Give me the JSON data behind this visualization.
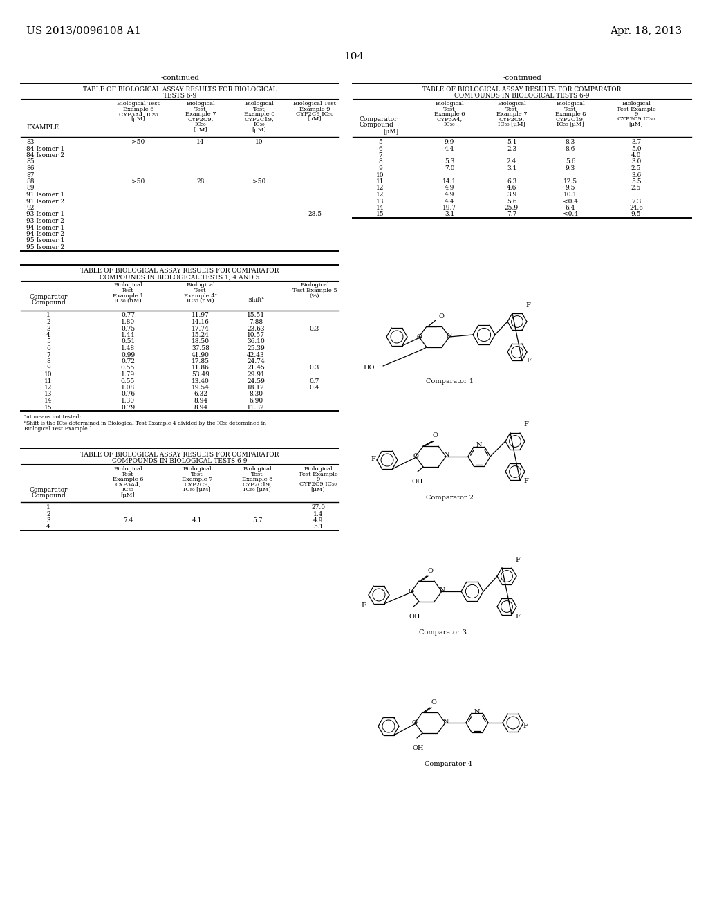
{
  "patent_number": "US 2013/0096108 A1",
  "date": "Apr. 18, 2013",
  "page_number": "104",
  "bg_color": "#ffffff",
  "tl_rows": [
    [
      "83",
      ">50",
      "14",
      "10",
      ""
    ],
    [
      "84 Isomer 1",
      "",
      "",
      "",
      ""
    ],
    [
      "84 Isomer 2",
      "",
      "",
      "",
      ""
    ],
    [
      "85",
      "",
      "",
      "",
      ""
    ],
    [
      "86",
      "",
      "",
      "",
      ""
    ],
    [
      "87",
      "",
      "",
      "",
      ""
    ],
    [
      "88",
      ">50",
      "28",
      ">50",
      ""
    ],
    [
      "89",
      "",
      "",
      "",
      ""
    ],
    [
      "91 Isomer 1",
      "",
      "",
      "",
      ""
    ],
    [
      "91 Isomer 2",
      "",
      "",
      "",
      ""
    ],
    [
      "92",
      "",
      "",
      "",
      ""
    ],
    [
      "93 Isomer 1",
      "",
      "",
      "",
      "28.5"
    ],
    [
      "93 Isomer 2",
      "",
      "",
      "",
      ""
    ],
    [
      "94 Isomer 1",
      "",
      "",
      "",
      ""
    ],
    [
      "94 Isomer 2",
      "",
      "",
      "",
      ""
    ],
    [
      "95 Isomer 1",
      "",
      "",
      "",
      ""
    ],
    [
      "95 Isomer 2",
      "",
      "",
      "",
      ""
    ]
  ],
  "tr_rows": [
    [
      "5",
      "9.9",
      "5.1",
      "8.3",
      "3.7"
    ],
    [
      "6",
      "4.4",
      "2.3",
      "8.6",
      "5.0"
    ],
    [
      "7",
      "",
      "",
      "",
      "4.0"
    ],
    [
      "8",
      "5.3",
      "2.4",
      "5.6",
      "3.0"
    ],
    [
      "9",
      "7.0",
      "3.1",
      "9.3",
      "2.5"
    ],
    [
      "10",
      "",
      "",
      "",
      "3.6"
    ],
    [
      "11",
      "14.1",
      "6.3",
      "12.5",
      "5.5"
    ],
    [
      "12",
      "4.9",
      "4.6",
      "9.5",
      "2.5"
    ],
    [
      "12",
      "4.9",
      "3.9",
      "10.1",
      ""
    ],
    [
      "13",
      "4.4",
      "5.6",
      "<0.4",
      "7.3"
    ],
    [
      "14",
      "19.7",
      "25.9",
      "6.4",
      "24.6"
    ],
    [
      "15",
      "3.1",
      "7.7",
      "<0.4",
      "9.5"
    ]
  ],
  "ml_rows": [
    [
      "1",
      "0.77",
      "11.97",
      "15.51",
      ""
    ],
    [
      "2",
      "1.80",
      "14.16",
      "7.88",
      ""
    ],
    [
      "3",
      "0.75",
      "17.74",
      "23.63",
      "0.3"
    ],
    [
      "4",
      "1.44",
      "15.24",
      "10.57",
      ""
    ],
    [
      "5",
      "0.51",
      "18.50",
      "36.10",
      ""
    ],
    [
      "6",
      "1.48",
      "37.58",
      "25.39",
      ""
    ],
    [
      "7",
      "0.99",
      "41.90",
      "42.43",
      ""
    ],
    [
      "8",
      "0.72",
      "17.85",
      "24.74",
      ""
    ],
    [
      "9",
      "0.55",
      "11.86",
      "21.45",
      "0.3"
    ],
    [
      "10",
      "1.79",
      "53.49",
      "29.91",
      ""
    ],
    [
      "11",
      "0.55",
      "13.40",
      "24.59",
      "0.7"
    ],
    [
      "12",
      "1.08",
      "19.54",
      "18.12",
      "0.4"
    ],
    [
      "13",
      "0.76",
      "6.32",
      "8.30",
      ""
    ],
    [
      "14",
      "1.30",
      "8.94",
      "6.90",
      ""
    ],
    [
      "15",
      "0.79",
      "8.94",
      "11.32",
      ""
    ]
  ],
  "bl_rows": [
    [
      "1",
      "",
      "",
      "",
      "27.0"
    ],
    [
      "2",
      "",
      "",
      "",
      "1.4"
    ],
    [
      "3",
      "7.4",
      "4.1",
      "5.7",
      "4.9"
    ],
    [
      "4",
      "",
      "",
      "",
      "5.1"
    ]
  ]
}
